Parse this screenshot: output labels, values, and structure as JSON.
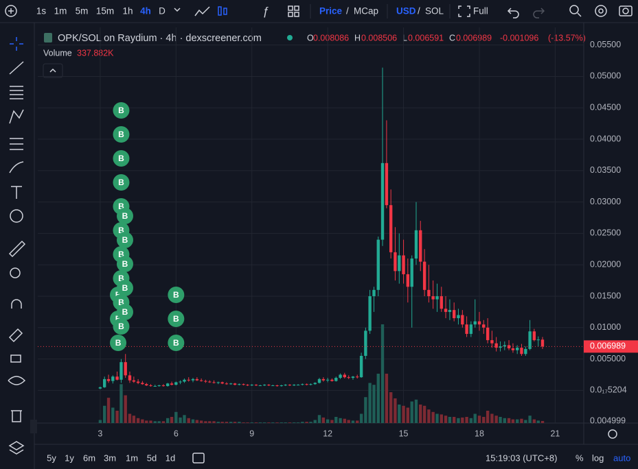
{
  "toolbar": {
    "intervals": [
      "1s",
      "1m",
      "5m",
      "15m",
      "1h",
      "4h",
      "D"
    ],
    "price": "Price",
    "slash": "/",
    "mcap": "MCap",
    "usd": "USD",
    "sol": "SOL",
    "full": "Full"
  },
  "header": {
    "title": "OPK/SOL on Raydium · 4h · dexscreener.com",
    "o": "O",
    "h": "H",
    "l": "L",
    "c": "C",
    "change": "-0.001096",
    "change_pct": "(-13.57%)",
    "volume_label": "Volume",
    "volume_last_label": "337.882K"
  },
  "bottom_bar": {
    "ranges": [
      "5y",
      "1y",
      "6m",
      "3m",
      "1m",
      "5d",
      "1d"
    ],
    "clock": "15:19:03 (UTC+8)",
    "percent": "%",
    "log": "log",
    "auto": "auto"
  },
  "chart_data": {
    "type": "candlestick",
    "x": [
      3,
      3.17,
      3.33,
      3.5,
      3.67,
      3.83,
      4,
      4.17,
      4.33,
      4.5,
      4.67,
      4.83,
      5,
      5.17,
      5.33,
      5.5,
      5.67,
      5.83,
      6,
      6.17,
      6.33,
      6.5,
      6.67,
      6.83,
      7,
      7.17,
      7.33,
      7.5,
      7.67,
      7.83,
      8,
      8.17,
      8.33,
      8.5,
      8.67,
      8.83,
      9,
      9.17,
      9.33,
      9.5,
      9.67,
      9.83,
      10,
      10.17,
      10.33,
      10.5,
      10.67,
      10.83,
      11,
      11.17,
      11.33,
      11.5,
      11.67,
      11.83,
      12,
      12.17,
      12.33,
      12.5,
      12.67,
      12.83,
      13,
      13.17,
      13.33,
      13.5,
      13.67,
      13.83,
      14,
      14.17,
      14.33,
      14.5,
      14.67,
      14.83,
      15,
      15.17,
      15.33,
      15.5,
      15.67,
      15.83,
      16,
      16.17,
      16.33,
      16.5,
      16.67,
      16.83,
      17,
      17.17,
      17.33,
      17.5,
      17.67,
      17.83,
      18,
      18.17,
      18.33,
      18.5,
      18.67,
      18.83,
      19,
      19.17,
      19.33,
      19.5,
      19.67,
      19.83,
      20,
      20.17,
      20.33,
      20.5
    ],
    "open": [
      0.0003,
      0.0005,
      0.0018,
      0.0015,
      0.0022,
      0.0017,
      0.0045,
      0.0024,
      0.0016,
      0.0014,
      0.0012,
      0.001,
      0.0008,
      0.0007,
      0.0007,
      0.0008,
      0.0007,
      0.0011,
      0.0009,
      0.0013,
      0.0014,
      0.0017,
      0.0016,
      0.0018,
      0.0016,
      0.0015,
      0.0014,
      0.0013,
      0.0012,
      0.0013,
      0.0011,
      0.001,
      0.0011,
      0.0009,
      0.001,
      0.0009,
      0.0008,
      0.0009,
      0.0008,
      0.0008,
      0.0009,
      0.0008,
      0.0008,
      0.0007,
      0.0008,
      0.0009,
      0.0008,
      0.0009,
      0.0009,
      0.001,
      0.0009,
      0.001,
      0.0012,
      0.0018,
      0.0016,
      0.0017,
      0.0015,
      0.002,
      0.0025,
      0.0021,
      0.002,
      0.0022,
      0.0021,
      0.0055,
      0.0095,
      0.015,
      0.016,
      0.024,
      0.0362,
      0.0295,
      0.022,
      0.019,
      0.0215,
      0.0185,
      0.0165,
      0.021,
      0.0255,
      0.0205,
      0.016,
      0.015,
      0.0145,
      0.015,
      0.013,
      0.0125,
      0.0128,
      0.0115,
      0.012,
      0.0105,
      0.009,
      0.0105,
      0.011,
      0.0105,
      0.01,
      0.008,
      0.0075,
      0.0068,
      0.007,
      0.0072,
      0.0067,
      0.0064,
      0.0068,
      0.0058,
      0.0066,
      0.0094,
      0.008,
      0.008086
    ],
    "high": [
      0.0006,
      0.0022,
      0.0025,
      0.0024,
      0.003,
      0.005,
      0.0058,
      0.003,
      0.0022,
      0.0018,
      0.0015,
      0.0012,
      0.001,
      0.0009,
      0.0009,
      0.001,
      0.0012,
      0.0014,
      0.0014,
      0.0016,
      0.0019,
      0.0021,
      0.002,
      0.0021,
      0.0019,
      0.0017,
      0.0016,
      0.0016,
      0.0014,
      0.0014,
      0.0013,
      0.0012,
      0.0012,
      0.0011,
      0.0011,
      0.001,
      0.001,
      0.001,
      0.0009,
      0.001,
      0.001,
      0.0009,
      0.0009,
      0.0009,
      0.001,
      0.001,
      0.001,
      0.001,
      0.0011,
      0.0011,
      0.0011,
      0.0013,
      0.002,
      0.0021,
      0.002,
      0.0019,
      0.0022,
      0.0027,
      0.0028,
      0.0024,
      0.0023,
      0.0025,
      0.006,
      0.01,
      0.016,
      0.0165,
      0.0245,
      0.0514,
      0.043,
      0.032,
      0.026,
      0.025,
      0.024,
      0.021,
      0.0215,
      0.03,
      0.027,
      0.0225,
      0.02,
      0.0175,
      0.017,
      0.0165,
      0.015,
      0.0145,
      0.014,
      0.013,
      0.0128,
      0.0118,
      0.011,
      0.0145,
      0.0125,
      0.0112,
      0.0115,
      0.0095,
      0.0085,
      0.0078,
      0.0078,
      0.008,
      0.0075,
      0.0072,
      0.0074,
      0.007,
      0.0112,
      0.0098,
      0.0086,
      0.008506
    ],
    "low": [
      0.0002,
      0.0004,
      0.0012,
      0.0011,
      0.0016,
      0.0012,
      0.002,
      0.0012,
      0.0012,
      0.001,
      0.0009,
      0.0007,
      0.0006,
      0.0006,
      0.0006,
      0.0006,
      0.0006,
      0.0008,
      0.0008,
      0.001,
      0.0012,
      0.0014,
      0.0013,
      0.0015,
      0.0014,
      0.0012,
      0.0012,
      0.0011,
      0.001,
      0.001,
      0.0009,
      0.0009,
      0.0008,
      0.0008,
      0.0008,
      0.0007,
      0.0007,
      0.0007,
      0.0007,
      0.0007,
      0.0007,
      0.0007,
      0.0006,
      0.0006,
      0.0007,
      0.0007,
      0.0007,
      0.0008,
      0.0008,
      0.0008,
      0.0008,
      0.0009,
      0.0011,
      0.0014,
      0.0013,
      0.0014,
      0.0014,
      0.0018,
      0.0019,
      0.0018,
      0.0017,
      0.0019,
      0.002,
      0.005,
      0.009,
      0.0125,
      0.015,
      0.023,
      0.029,
      0.021,
      0.0175,
      0.017,
      0.017,
      0.014,
      0.01,
      0.02,
      0.019,
      0.015,
      0.014,
      0.013,
      0.0125,
      0.0125,
      0.0115,
      0.0112,
      0.011,
      0.0105,
      0.01,
      0.0085,
      0.0085,
      0.01,
      0.0095,
      0.009,
      0.0075,
      0.0068,
      0.0062,
      0.0062,
      0.0064,
      0.0064,
      0.006,
      0.0058,
      0.0055,
      0.0055,
      0.0064,
      0.0078,
      0.007,
      0.006591
    ],
    "close": [
      0.0005,
      0.0018,
      0.0015,
      0.0022,
      0.0017,
      0.0045,
      0.0024,
      0.0016,
      0.0014,
      0.0012,
      0.001,
      0.0008,
      0.0007,
      0.0007,
      0.0008,
      0.0007,
      0.0011,
      0.0009,
      0.0013,
      0.0014,
      0.0017,
      0.0016,
      0.0018,
      0.0016,
      0.0015,
      0.0014,
      0.0013,
      0.0012,
      0.0013,
      0.0011,
      0.001,
      0.0011,
      0.0009,
      0.001,
      0.0009,
      0.0008,
      0.0009,
      0.0008,
      0.0008,
      0.0009,
      0.0008,
      0.0008,
      0.0007,
      0.0008,
      0.0009,
      0.0008,
      0.0009,
      0.0009,
      0.001,
      0.0009,
      0.001,
      0.0012,
      0.0018,
      0.0016,
      0.0017,
      0.0015,
      0.002,
      0.0025,
      0.0021,
      0.002,
      0.0022,
      0.0021,
      0.0055,
      0.0095,
      0.015,
      0.016,
      0.024,
      0.0362,
      0.0295,
      0.022,
      0.019,
      0.0215,
      0.0185,
      0.0165,
      0.021,
      0.0255,
      0.0205,
      0.016,
      0.015,
      0.0145,
      0.015,
      0.013,
      0.0125,
      0.0128,
      0.0115,
      0.012,
      0.0105,
      0.009,
      0.0105,
      0.011,
      0.0105,
      0.01,
      0.008,
      0.0075,
      0.0068,
      0.007,
      0.0072,
      0.0067,
      0.0064,
      0.0068,
      0.0058,
      0.0066,
      0.0094,
      0.008,
      0.0081,
      0.006989
    ],
    "volume": [
      500000,
      2800000,
      4100000,
      2500000,
      2000000,
      6300000,
      4500000,
      1500000,
      1200000,
      800000,
      600000,
      400000,
      400000,
      300000,
      300000,
      300000,
      800000,
      1000000,
      1800000,
      900000,
      1300000,
      800000,
      600000,
      500000,
      400000,
      300000,
      300000,
      300000,
      200000,
      200000,
      200000,
      200000,
      200000,
      200000,
      100000,
      100000,
      100000,
      100000,
      100000,
      100000,
      100000,
      100000,
      100000,
      100000,
      100000,
      100000,
      100000,
      100000,
      200000,
      200000,
      200000,
      500000,
      1300000,
      900000,
      600000,
      500000,
      1000000,
      800000,
      700000,
      500000,
      400000,
      400000,
      1500000,
      4200000,
      6500000,
      6200000,
      8000000,
      16000000,
      8000000,
      5000000,
      4000000,
      3000000,
      2800000,
      2500000,
      3500000,
      3800000,
      3000000,
      2800000,
      2200000,
      1800000,
      1500000,
      1400000,
      1200000,
      1000000,
      1000000,
      800000,
      900000,
      1000000,
      800000,
      1500000,
      1200000,
      1000000,
      2000000,
      1500000,
      1200000,
      1000000,
      800000,
      800000,
      600000,
      600000,
      700000,
      500000,
      1200000,
      600000,
      400000,
      337882
    ],
    "up_color": "#22ab94",
    "down_color": "#f23645",
    "up_volume_color": "#1f5f57",
    "down_volume_color": "#7d2a33",
    "xlim": [
      0.53,
      22.13
    ],
    "xticks": [
      3,
      6,
      9,
      12,
      15,
      18,
      21
    ],
    "ylim": [
      -0.0052,
      0.0578
    ],
    "yticks": [
      {
        "value": 0.055,
        "label": "0.05500"
      },
      {
        "value": 0.05,
        "label": "0.05000"
      },
      {
        "value": 0.045,
        "label": "0.04500"
      },
      {
        "value": 0.04,
        "label": "0.04000"
      },
      {
        "value": 0.035,
        "label": "0.03500"
      },
      {
        "value": 0.03,
        "label": "0.03000"
      },
      {
        "value": 0.025,
        "label": "0.02500"
      },
      {
        "value": 0.02,
        "label": "0.02000"
      },
      {
        "value": 0.015,
        "label": "0.01500"
      },
      {
        "value": 0.01,
        "label": "0.01000"
      },
      {
        "value": 0.005,
        "label": "0.005000"
      },
      {
        "value": 5.204e-21,
        "label": "0.0₁₇5204"
      }
    ],
    "volume_lim": [
      0,
      25000000
    ],
    "volume_axis_label": "0.004999",
    "grid": true,
    "buy_marker_label": "B",
    "buy_marker_color": "#2e9e6a",
    "buy_markers": [
      {
        "x": 3.71,
        "count": 3
      },
      {
        "x": 3.83,
        "count": 10
      },
      {
        "x": 3.98,
        "count": 5
      },
      {
        "x": 6.0,
        "count": 3
      }
    ]
  }
}
